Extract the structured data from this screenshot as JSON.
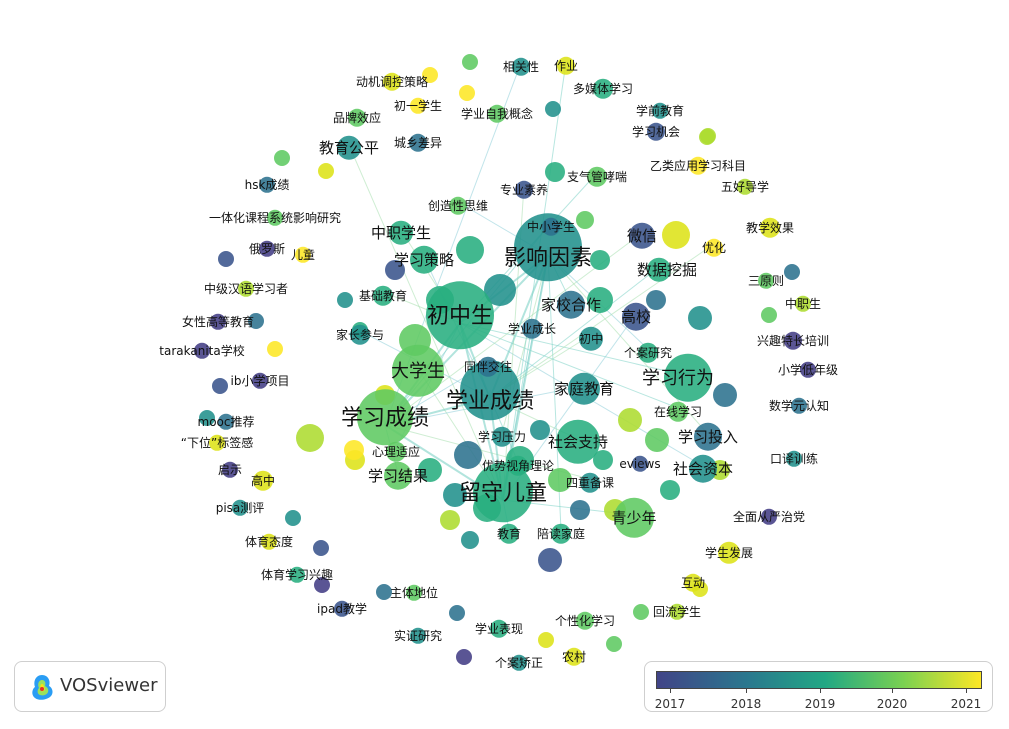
{
  "legend": {
    "years": [
      "2017",
      "2018",
      "2019",
      "2020",
      "2021"
    ]
  },
  "logo": {
    "text": "VOSviewer"
  },
  "network": {
    "labels": [
      {
        "t": "影响因素",
        "s": "xl"
      },
      {
        "t": "初中生",
        "s": "xl"
      },
      {
        "t": "学业成绩",
        "s": "xl"
      },
      {
        "t": "学习成绩",
        "s": "xl"
      },
      {
        "t": "大学生",
        "s": "l"
      },
      {
        "t": "留守儿童",
        "s": "xl"
      },
      {
        "t": "学习行为",
        "s": "l"
      },
      {
        "t": "社会支持",
        "s": "m"
      },
      {
        "t": "家庭教育",
        "s": "m"
      },
      {
        "t": "青少年",
        "s": "m"
      },
      {
        "t": "学习投入",
        "s": "m"
      },
      {
        "t": "社会资本",
        "s": "m"
      },
      {
        "t": "数据挖掘",
        "s": "m"
      },
      {
        "t": "微信",
        "s": "m"
      },
      {
        "t": "高校",
        "s": "m"
      },
      {
        "t": "家校合作",
        "s": "m"
      },
      {
        "t": "中职学生",
        "s": "m"
      },
      {
        "t": "学习策略",
        "s": "m"
      },
      {
        "t": "学习结果",
        "s": "m"
      },
      {
        "t": "教育公平",
        "s": "m"
      },
      {
        "t": "个案研究",
        "s": "s"
      },
      {
        "t": "在线学习",
        "s": "s"
      },
      {
        "t": "初中",
        "s": "s"
      },
      {
        "t": "同伴交往",
        "s": "s"
      },
      {
        "t": "学业成长",
        "s": "s"
      },
      {
        "t": "学习压力",
        "s": "s"
      },
      {
        "t": "心理适应",
        "s": "s"
      },
      {
        "t": "优势视角理论",
        "s": "s"
      },
      {
        "t": "四重备课",
        "s": "s"
      },
      {
        "t": "教育",
        "s": "s"
      },
      {
        "t": "陪读家庭",
        "s": "s"
      },
      {
        "t": "基础教育",
        "s": "s"
      },
      {
        "t": "家长参与",
        "s": "s"
      },
      {
        "t": "中小学生",
        "s": "s"
      },
      {
        "t": "专业素养",
        "s": "s"
      },
      {
        "t": "创造性思维",
        "s": "s"
      },
      {
        "t": "支气管哮喘",
        "s": "s"
      },
      {
        "t": "优化",
        "s": "s"
      },
      {
        "t": "相关性",
        "s": "s"
      },
      {
        "t": "作业",
        "s": "s"
      },
      {
        "t": "多媒体学习",
        "s": "s"
      },
      {
        "t": "动机调控策略",
        "s": "s"
      },
      {
        "t": "初一学生",
        "s": "s"
      },
      {
        "t": "学业自我概念",
        "s": "s"
      },
      {
        "t": "品牌效应",
        "s": "s"
      },
      {
        "t": "城乡差异",
        "s": "s"
      },
      {
        "t": "学前教育",
        "s": "s"
      },
      {
        "t": "学习机会",
        "s": "s"
      },
      {
        "t": "乙类应用学习科目",
        "s": "s"
      },
      {
        "t": "五好导学",
        "s": "s"
      },
      {
        "t": "教学效果",
        "s": "s"
      },
      {
        "t": "三原则",
        "s": "s"
      },
      {
        "t": "中职生",
        "s": "s"
      },
      {
        "t": "兴趣特长培训",
        "s": "s"
      },
      {
        "t": "小学低年级",
        "s": "s"
      },
      {
        "t": "数学元认知",
        "s": "s"
      },
      {
        "t": "口译训练",
        "s": "s"
      },
      {
        "t": "全面从严治党",
        "s": "s"
      },
      {
        "t": "学生发展",
        "s": "s"
      },
      {
        "t": "互动",
        "s": "s"
      },
      {
        "t": "回流学生",
        "s": "s"
      },
      {
        "t": "农村",
        "s": "s"
      },
      {
        "t": "个案矫正",
        "s": "s"
      },
      {
        "t": "个性化学习",
        "s": "s"
      },
      {
        "t": "学业表现",
        "s": "s"
      },
      {
        "t": "实证研究",
        "s": "s"
      },
      {
        "t": "主体地位",
        "s": "s"
      },
      {
        "t": "ipad教学",
        "s": "s"
      },
      {
        "t": "体育学习兴趣",
        "s": "s"
      },
      {
        "t": "体育态度",
        "s": "s"
      },
      {
        "t": "pisa测评",
        "s": "s"
      },
      {
        "t": "高中",
        "s": "s"
      },
      {
        "t": "启示",
        "s": "s"
      },
      {
        "t": "“下位”标签感",
        "s": "s"
      },
      {
        "t": "mooc推荐",
        "s": "s"
      },
      {
        "t": "ib小学项目",
        "s": "s"
      },
      {
        "t": "tarakanita学校",
        "s": "s"
      },
      {
        "t": "女性高等教育",
        "s": "s"
      },
      {
        "t": "中级汉语学习者",
        "s": "s"
      },
      {
        "t": "儿童",
        "s": "s"
      },
      {
        "t": "俄罗斯",
        "s": "s"
      },
      {
        "t": "一体化课程系统影响研究",
        "s": "s"
      },
      {
        "t": "hsk成绩",
        "s": "s"
      },
      {
        "t": "eviews",
        "s": "s"
      }
    ]
  }
}
